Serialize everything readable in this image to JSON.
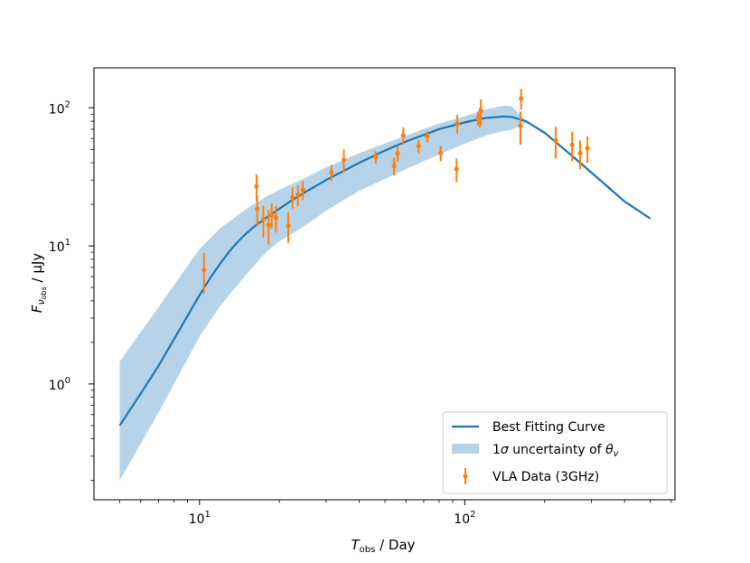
{
  "chart_data": {
    "type": "line",
    "xscale": "log",
    "yscale": "log",
    "xlim": [
      4.0,
      620
    ],
    "ylim": [
      0.145,
      195
    ],
    "xlabel": {
      "main": "T",
      "sub": "obs",
      "rest": " / Day"
    },
    "ylabel": {
      "main": "F",
      "sub": "ν",
      "subsub": "obs",
      "rest": " / μJy"
    },
    "x_ticks": [
      {
        "base": "10",
        "exp": "1",
        "value": 10
      },
      {
        "base": "10",
        "exp": "2",
        "value": 100
      }
    ],
    "y_ticks": [
      {
        "base": "10",
        "exp": "0",
        "value": 1
      },
      {
        "base": "10",
        "exp": "1",
        "value": 10
      },
      {
        "base": "10",
        "exp": "2",
        "value": 100
      }
    ],
    "colors": {
      "curve": "#1f77b4",
      "band": "#b7d3ea",
      "data": "#ff7f0e"
    },
    "legend": {
      "location": "lower right",
      "curve_label": "Best Fitting Curve",
      "band_label_pre": "1",
      "band_label_sigma": "σ",
      "band_label_mid": " uncertainty of ",
      "band_label_theta": "θ",
      "band_label_sub": "v",
      "data_label": "VLA Data (3GHz)"
    },
    "series": [
      {
        "name": "Best Fitting Curve",
        "x": [
          5,
          6,
          7,
          8,
          9,
          10,
          11,
          12,
          13,
          14,
          15,
          16,
          18,
          20,
          22,
          25,
          30,
          40,
          50,
          60,
          80,
          100,
          120,
          140,
          150,
          170,
          200,
          250,
          300,
          400,
          500
        ],
        "y": [
          0.5,
          0.85,
          1.35,
          2.1,
          3.1,
          4.4,
          5.9,
          7.5,
          9.2,
          10.8,
          12.3,
          13.7,
          16.2,
          18.6,
          21.0,
          24.5,
          30.0,
          40.0,
          49.0,
          57.0,
          70.0,
          78.5,
          84.5,
          86.5,
          86.0,
          80.0,
          66.0,
          46.0,
          34.0,
          21.0,
          15.8
        ]
      },
      {
        "name": "1σ uncertainty of θv",
        "x": [
          5,
          7,
          10,
          12,
          15,
          18,
          20,
          25,
          30,
          40,
          60,
          80,
          100,
          120,
          140,
          150
        ],
        "upper": [
          1.45,
          3.6,
          9.5,
          13.5,
          18.5,
          23.0,
          25.5,
          31.0,
          37.0,
          47.0,
          63.0,
          77.0,
          87.0,
          97.0,
          104.0,
          103.0
        ],
        "lower": [
          0.2,
          0.62,
          2.2,
          3.7,
          6.2,
          9.2,
          10.8,
          14.0,
          18.0,
          25.0,
          36.0,
          46.0,
          55.0,
          63.0,
          68.0,
          69.0
        ]
      },
      {
        "name": "VLA Data (3GHz)",
        "x": [
          10.4,
          16.4,
          16.5,
          17.4,
          18.2,
          18.7,
          19.4,
          21.6,
          22.4,
          23.5,
          24.5,
          31.4,
          35.0,
          46.1,
          54.1,
          55.8,
          58.6,
          67.0,
          72.2,
          81.1,
          93.1,
          93.7,
          112.0,
          114.0,
          115.0,
          162.0,
          163.0,
          220.0,
          254.0,
          272.0,
          290.0
        ],
        "y": [
          6.7,
          27.0,
          18.5,
          15.5,
          14.2,
          16.8,
          16.0,
          14.0,
          22.5,
          23.5,
          25.5,
          34.0,
          42.0,
          44.0,
          38.0,
          47.0,
          63.0,
          53.0,
          62.0,
          47.0,
          36.0,
          77.0,
          84.0,
          86.0,
          95.0,
          74.0,
          117.0,
          58.0,
          54.0,
          47.0,
          51.0
        ],
        "err": [
          2.2,
          6.0,
          4.5,
          4.0,
          4.0,
          3.5,
          3.5,
          3.5,
          4.0,
          4.0,
          4.0,
          4.5,
          8.0,
          4.5,
          5.5,
          6.0,
          9.0,
          6.0,
          6.0,
          6.0,
          7.0,
          12.0,
          10.0,
          14.0,
          20.0,
          20.0,
          20.0,
          15.0,
          13.0,
          11.0,
          11.0
        ]
      }
    ]
  }
}
